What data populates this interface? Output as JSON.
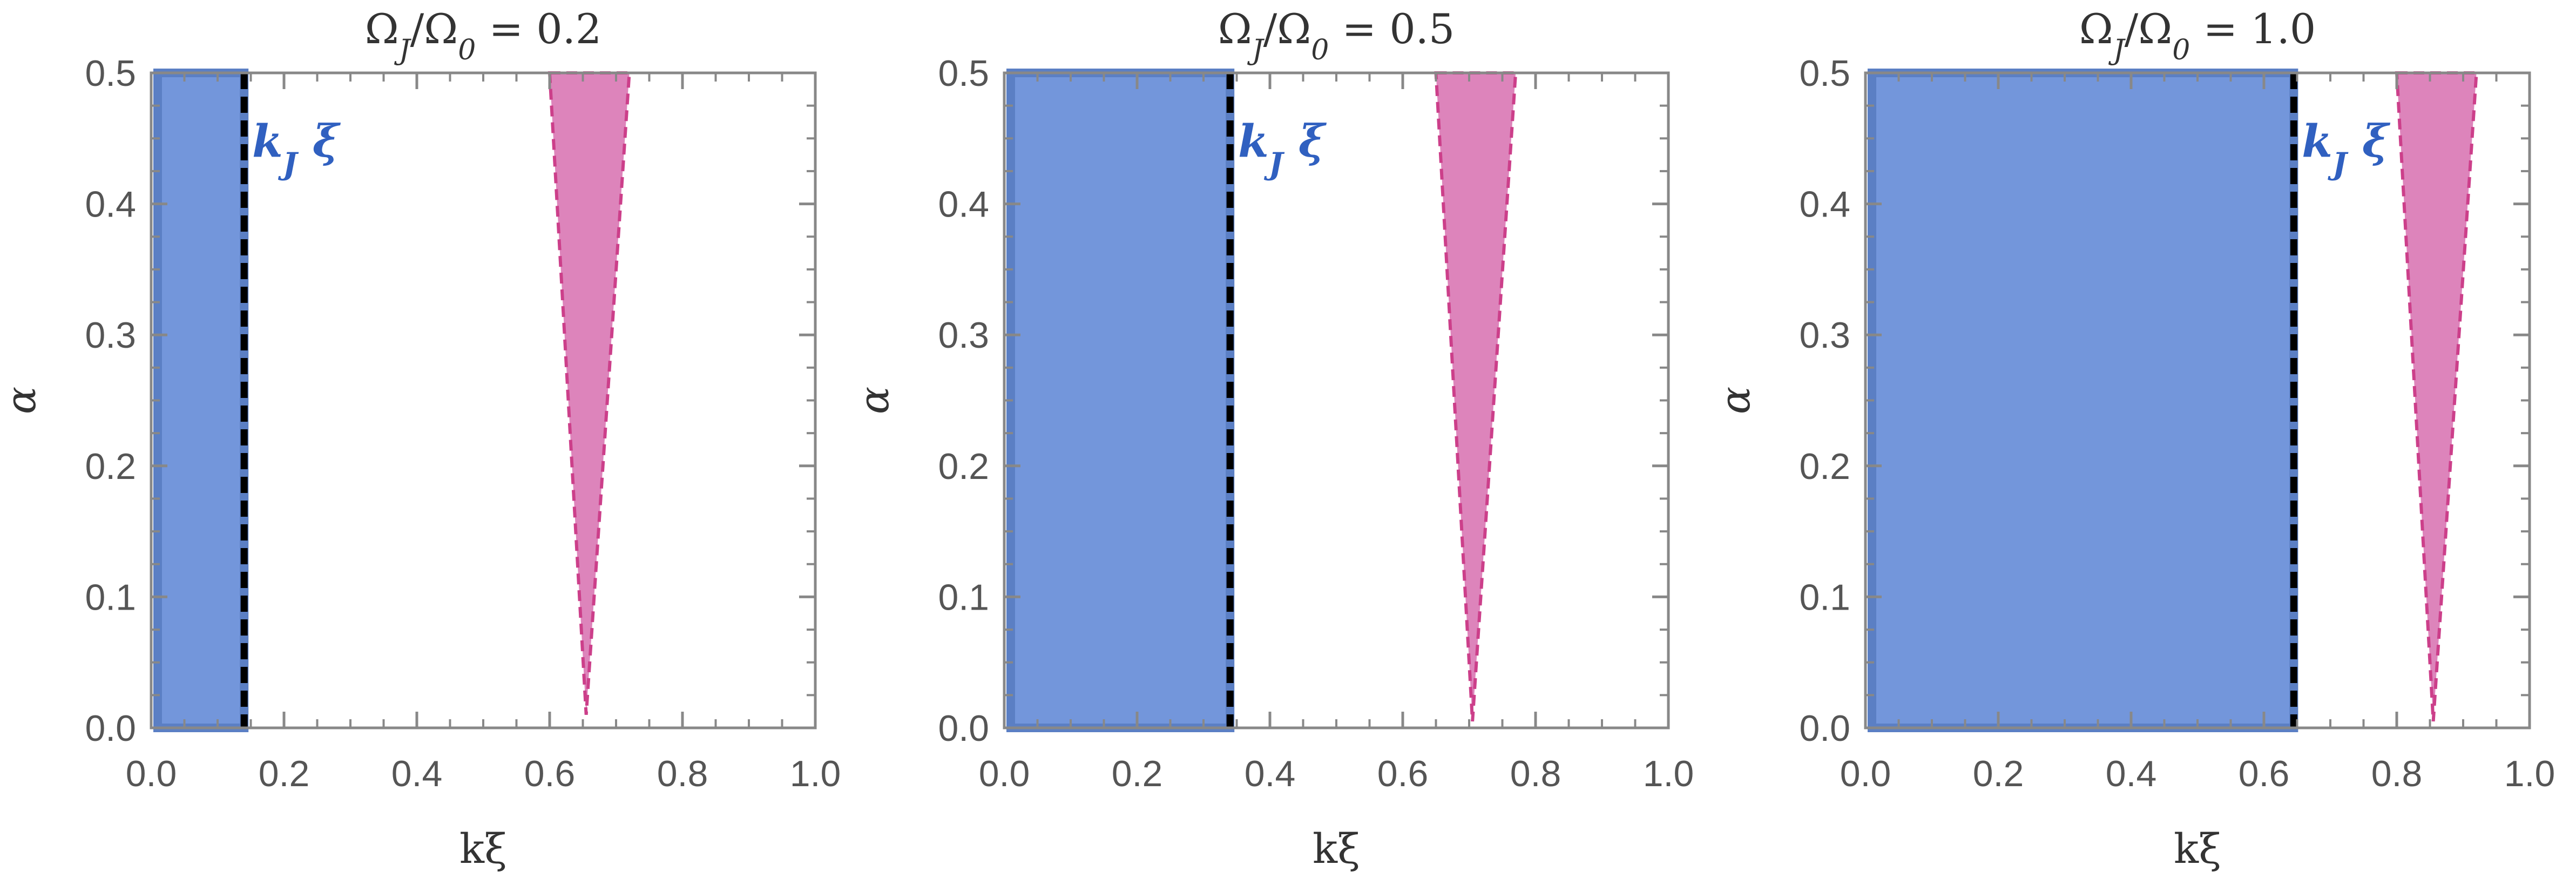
{
  "colors": {
    "blue_fill": "#7396db",
    "blue_edge": "#5b7fc4",
    "pink_fill": "#dd84bb",
    "pink_edge": "#cc3f8a",
    "kj_label": "#3060c0",
    "frame": "#888888",
    "text": "#555555"
  },
  "chart_data": [
    {
      "type": "area",
      "title": "Ω_J/Ω_0 = 0.2",
      "xlabel": "kξ",
      "ylabel": "α",
      "xlim": [
        0,
        1.0
      ],
      "ylim": [
        0,
        0.5
      ],
      "x_ticks": [
        "0.0",
        "0.2",
        "0.4",
        "0.6",
        "0.8",
        "1.0"
      ],
      "y_ticks": [
        "0.0",
        "0.1",
        "0.2",
        "0.3",
        "0.4",
        "0.5"
      ],
      "grid": false,
      "legend": "none",
      "annotation": "k_J ξ",
      "kj": 0.14,
      "blue_region": {
        "x": [
          0,
          0.14
        ],
        "y": [
          0,
          0.5
        ]
      },
      "pink_region": {
        "x_left_at_top": 0.6,
        "x_right_at_top": 0.72,
        "x_tip": 0.655,
        "y_tip": 0.01,
        "y_top": 0.5
      }
    },
    {
      "type": "area",
      "title": "Ω_J/Ω_0 = 0.5",
      "xlabel": "kξ",
      "ylabel": "α",
      "xlim": [
        0,
        1.0
      ],
      "ylim": [
        0,
        0.5
      ],
      "x_ticks": [
        "0.0",
        "0.2",
        "0.4",
        "0.6",
        "0.8",
        "1.0"
      ],
      "y_ticks": [
        "0.0",
        "0.1",
        "0.2",
        "0.3",
        "0.4",
        "0.5"
      ],
      "grid": false,
      "legend": "none",
      "annotation": "k_J ξ",
      "kj": 0.34,
      "blue_region": {
        "x": [
          0,
          0.34
        ],
        "y": [
          0,
          0.5
        ]
      },
      "pink_region": {
        "x_left_at_top": 0.65,
        "x_right_at_top": 0.77,
        "x_tip": 0.705,
        "y_tip": 0.005,
        "y_top": 0.5
      }
    },
    {
      "type": "area",
      "title": "Ω_J/Ω_0 = 1.0",
      "xlabel": "kξ",
      "ylabel": "α",
      "xlim": [
        0,
        1.0
      ],
      "ylim": [
        0,
        0.5
      ],
      "x_ticks": [
        "0.0",
        "0.2",
        "0.4",
        "0.6",
        "0.8",
        "1.0"
      ],
      "y_ticks": [
        "0.0",
        "0.1",
        "0.2",
        "0.3",
        "0.4",
        "0.5"
      ],
      "grid": false,
      "legend": "none",
      "annotation": "k_J ξ",
      "kj": 0.645,
      "blue_region": {
        "x": [
          0,
          0.645
        ],
        "y": [
          0,
          0.5
        ]
      },
      "pink_region": {
        "x_left_at_top": 0.8,
        "x_right_at_top": 0.92,
        "x_tip": 0.855,
        "y_tip": 0.005,
        "y_top": 0.5
      }
    }
  ]
}
